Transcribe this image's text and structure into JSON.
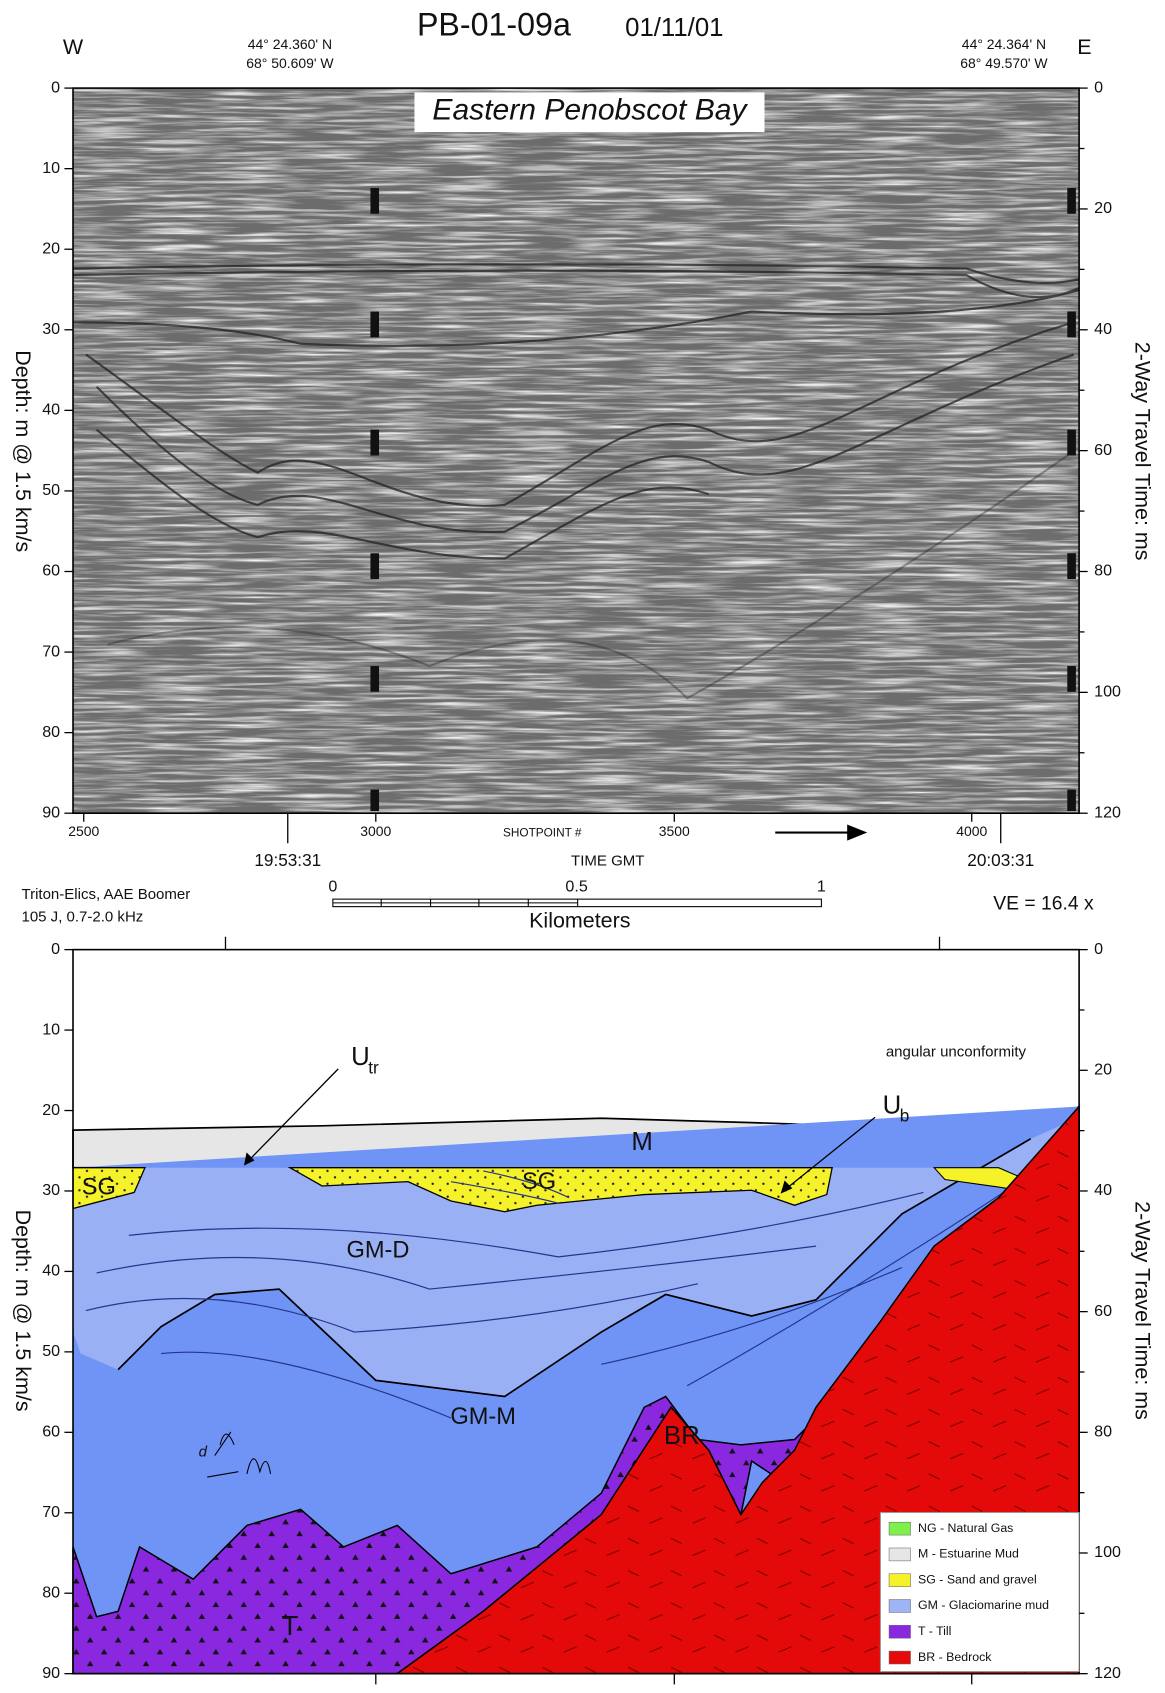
{
  "title": "PB-01-09a",
  "date": "01/11/01",
  "west": "W",
  "east": "E",
  "coords_left": [
    "44° 24.360' N",
    "68° 50.609' W"
  ],
  "coords_right": [
    "44° 24.364' N",
    "68° 49.570' W"
  ],
  "depth_label": "Depth: m @ 1.5 km/s",
  "time_axis_label": "2-Way Travel Time: ms",
  "depth_ticks": [
    "0",
    "10",
    "20",
    "30",
    "40",
    "50",
    "60",
    "70",
    "80",
    "90"
  ],
  "time_ticks": [
    "0",
    "20",
    "40",
    "60",
    "80",
    "100",
    "120"
  ],
  "seismic": {
    "label": "Eastern Penobscot Bay",
    "shotpoints": [
      "2500",
      "3000",
      "3500",
      "4000"
    ],
    "shotpoint_label": "SHOTPOINT #",
    "times": [
      "19:53:31",
      "20:03:31"
    ],
    "time_label": "TIME GMT"
  },
  "source": [
    "Triton-Elics, AAE Boomer",
    "105 J, 0.7-2.0 kHz"
  ],
  "scale": {
    "ticks": [
      "0",
      "0.5",
      "1"
    ],
    "unit": "Kilometers"
  },
  "ve": "VE = 16.4 x",
  "interpretation": {
    "labels": {
      "utr": "U",
      "utr_sub": "tr",
      "ub": "U",
      "ub_sub": "b",
      "unconformity": "angular unconformity",
      "m": "M",
      "sg1": "SG",
      "sg2": "SG",
      "gmd": "GM-D",
      "gmm": "GM-M",
      "br": "BR",
      "t": "T",
      "d": "d"
    },
    "legend": [
      {
        "label": "NG - Natural Gas",
        "color": "#7ef04a"
      },
      {
        "label": "M -  Estuarine Mud",
        "color": "#e6e6e6"
      },
      {
        "label": "SG - Sand and gravel",
        "color": "#f6f22a"
      },
      {
        "label": "GM - Glaciomarine mud",
        "color": "#9fb4f5"
      },
      {
        "label": "T -  Till",
        "color": "#8a28e0"
      },
      {
        "label": "BR - Bedrock",
        "color": "#e40a0a"
      }
    ]
  }
}
